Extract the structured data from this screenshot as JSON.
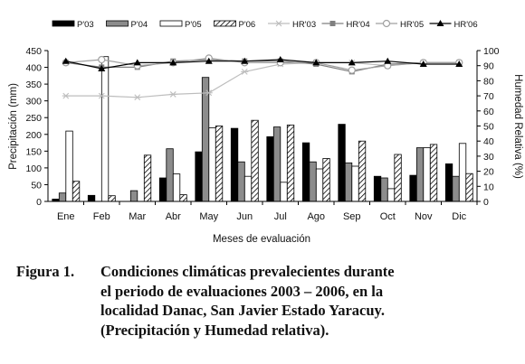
{
  "chart_data": {
    "type": "bar+line",
    "categories": [
      "Ene",
      "Feb",
      "Mar",
      "Abr",
      "May",
      "Jun",
      "Jul",
      "Ago",
      "Sep",
      "Oct",
      "Nov",
      "Dic"
    ],
    "xlabel": "Meses de evaluación",
    "ylabel_left": "Precipitación (mm)",
    "ylabel_right": "Humedad Relativa (%)",
    "ylim_left": [
      0,
      450
    ],
    "yticks_left": [
      0,
      50,
      100,
      150,
      200,
      250,
      300,
      350,
      400,
      450
    ],
    "ylim_right": [
      0,
      100
    ],
    "yticks_right": [
      0,
      10,
      20,
      30,
      40,
      50,
      60,
      70,
      80,
      90,
      100
    ],
    "legend_position": "top",
    "bar_series": [
      {
        "name": "P'03",
        "style": "solid-black",
        "values": [
          7,
          18,
          0,
          70,
          148,
          218,
          193,
          175,
          230,
          75,
          78,
          112
        ]
      },
      {
        "name": "P'04",
        "style": "gray",
        "values": [
          25,
          0,
          32,
          157,
          370,
          118,
          222,
          118,
          115,
          70,
          160,
          75
        ]
      },
      {
        "name": "P'05",
        "style": "white",
        "values": [
          210,
          432,
          0,
          82,
          220,
          75,
          57,
          97,
          105,
          38,
          160,
          173
        ]
      },
      {
        "name": "P'06",
        "style": "hatched",
        "values": [
          60,
          17,
          138,
          20,
          225,
          242,
          228,
          128,
          180,
          140,
          170,
          83
        ]
      }
    ],
    "line_series": [
      {
        "name": "HR'03",
        "marker": "asterisk",
        "color": "#bdbdbd",
        "values": [
          70,
          70,
          69,
          71,
          72,
          86,
          91,
          92,
          92,
          90,
          92,
          92
        ]
      },
      {
        "name": "HR'04",
        "marker": "square",
        "color": "#808080",
        "values": [
          92,
          89,
          89,
          93,
          94,
          93,
          93,
          91,
          86,
          91,
          92,
          92
        ]
      },
      {
        "name": "HR'05",
        "marker": "circle",
        "color": "#a0a0a0",
        "values": [
          92,
          94,
          90,
          92,
          95,
          92,
          92,
          92,
          87,
          90,
          92,
          92
        ]
      },
      {
        "name": "HR'06",
        "marker": "triangle",
        "color": "#000000",
        "values": [
          93,
          88,
          92,
          92,
          93,
          93,
          94,
          92,
          92,
          93,
          91,
          91
        ]
      }
    ]
  },
  "caption": {
    "lead": "Figura 1.",
    "lines": [
      "Condiciones climáticas prevalecientes durante",
      "el periodo de evaluaciones 2003 – 2006, en la",
      "localidad Danac, San Javier Estado Yaracuy.",
      "(Precipitación y Humedad relativa)."
    ]
  }
}
